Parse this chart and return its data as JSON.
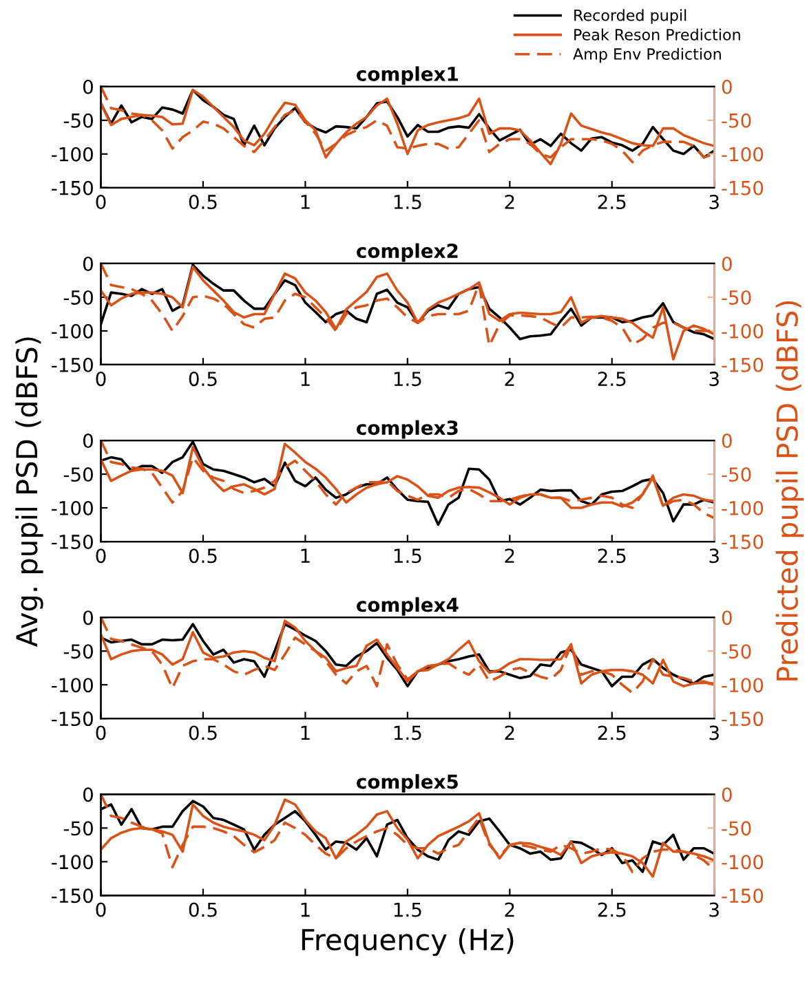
{
  "chart_data": [
    {
      "type": "line",
      "title": "complex1",
      "legend": "top right",
      "grid": false,
      "marker": "none",
      "x": [
        0,
        0.05,
        0.1,
        0.15,
        0.2,
        0.25,
        0.3,
        0.35,
        0.4,
        0.45,
        0.5,
        0.55,
        0.6,
        0.65,
        0.7,
        0.75,
        0.8,
        0.85,
        0.9,
        0.95,
        1,
        1.05,
        1.1,
        1.15,
        1.2,
        1.25,
        1.3,
        1.35,
        1.4,
        1.45,
        1.5,
        1.55,
        1.6,
        1.65,
        1.7,
        1.75,
        1.8,
        1.85,
        1.9,
        1.95,
        2,
        2.05,
        2.1,
        2.15,
        2.2,
        2.25,
        2.3,
        2.35,
        2.4,
        2.45,
        2.5,
        2.55,
        2.6,
        2.65,
        2.7,
        2.75,
        2.8,
        2.85,
        2.9,
        2.95,
        3
      ],
      "xlim": [
        0,
        3
      ],
      "xticks": [
        0,
        0.5,
        1,
        1.5,
        2,
        2.5,
        3
      ],
      "ylim": [
        -150,
        0
      ],
      "yticks": [
        -150,
        -100,
        -50,
        0
      ],
      "y2lim": [
        -150,
        0
      ],
      "y2ticks": [
        -150,
        -100,
        -50,
        0
      ],
      "series": [
        {
          "name": "Recorded pupil",
          "color": "#000000",
          "line_style": "solid",
          "values": [
            -25,
            -55,
            -28,
            -53,
            -45,
            -48,
            -31,
            -34,
            -40,
            -5,
            -20,
            -30,
            -42,
            -48,
            -87,
            -58,
            -87,
            -62,
            -45,
            -32,
            -53,
            -62,
            -68,
            -59,
            -60,
            -62,
            -45,
            -25,
            -22,
            -45,
            -74,
            -57,
            -67,
            -67,
            -61,
            -59,
            -61,
            -41,
            -62,
            -80,
            -72,
            -64,
            -86,
            -78,
            -88,
            -70,
            -84,
            -95,
            -77,
            -75,
            -83,
            -87,
            -95,
            -85,
            -60,
            -78,
            -95,
            -100,
            -88,
            -105,
            -95
          ]
        },
        {
          "name": "Peak Reson Prediction",
          "color": "#d95319",
          "line_style": "solid",
          "axis": "y2",
          "values": [
            -25,
            -57,
            -48,
            -45,
            -42,
            -43,
            -45,
            -56,
            -55,
            -5,
            -15,
            -30,
            -45,
            -60,
            -80,
            -87,
            -70,
            -45,
            -24,
            -27,
            -50,
            -65,
            -105,
            -85,
            -68,
            -55,
            -45,
            -28,
            -18,
            -55,
            -100,
            -65,
            -57,
            -53,
            -50,
            -47,
            -42,
            -18,
            -70,
            -62,
            -62,
            -65,
            -80,
            -98,
            -115,
            -85,
            -40,
            -58,
            -63,
            -68,
            -72,
            -78,
            -84,
            -87,
            -88,
            -62,
            -62,
            -72,
            -78,
            -84,
            -88
          ]
        },
        {
          "name": "Amp Env Prediction",
          "color": "#d95319",
          "line_style": "dashed",
          "axis": "y2",
          "values": [
            0,
            -32,
            -35,
            -40,
            -42,
            -50,
            -65,
            -92,
            -75,
            -65,
            -52,
            -55,
            -62,
            -75,
            -88,
            -97,
            -80,
            -60,
            -42,
            -35,
            -52,
            -70,
            -95,
            -85,
            -72,
            -65,
            -60,
            -50,
            -58,
            -90,
            -92,
            -88,
            -85,
            -85,
            -92,
            -90,
            -70,
            -50,
            -97,
            -85,
            -78,
            -78,
            -85,
            -100,
            -105,
            -90,
            -78,
            -78,
            -78,
            -80,
            -85,
            -95,
            -112,
            -95,
            -87,
            -82,
            -82,
            -82,
            -88,
            -105,
            -100
          ]
        }
      ]
    },
    {
      "type": "line",
      "title": "complex2",
      "grid": false,
      "marker": "none",
      "x": [
        0,
        0.05,
        0.1,
        0.15,
        0.2,
        0.25,
        0.3,
        0.35,
        0.4,
        0.45,
        0.5,
        0.55,
        0.6,
        0.65,
        0.7,
        0.75,
        0.8,
        0.85,
        0.9,
        0.95,
        1,
        1.05,
        1.1,
        1.15,
        1.2,
        1.25,
        1.3,
        1.35,
        1.4,
        1.45,
        1.5,
        1.55,
        1.6,
        1.65,
        1.7,
        1.75,
        1.8,
        1.85,
        1.9,
        1.95,
        2,
        2.05,
        2.1,
        2.15,
        2.2,
        2.25,
        2.3,
        2.35,
        2.4,
        2.45,
        2.5,
        2.55,
        2.6,
        2.65,
        2.7,
        2.75,
        2.8,
        2.85,
        2.9,
        2.95,
        3
      ],
      "xlim": [
        0,
        3
      ],
      "xticks": [
        0,
        0.5,
        1,
        1.5,
        2,
        2.5,
        3
      ],
      "ylim": [
        -150,
        0
      ],
      "yticks": [
        -150,
        -100,
        -50,
        0
      ],
      "y2lim": [
        -150,
        0
      ],
      "y2ticks": [
        -150,
        -100,
        -50,
        0
      ],
      "series": [
        {
          "color": "#000000",
          "line_style": "solid",
          "values": [
            -90,
            -43,
            -45,
            -48,
            -38,
            -45,
            -38,
            -70,
            -62,
            -2,
            -18,
            -30,
            -40,
            -40,
            -55,
            -67,
            -67,
            -45,
            -25,
            -32,
            -58,
            -72,
            -87,
            -75,
            -70,
            -82,
            -87,
            -45,
            -39,
            -58,
            -65,
            -88,
            -70,
            -62,
            -67,
            -45,
            -38,
            -35,
            -67,
            -80,
            -95,
            -112,
            -108,
            -107,
            -105,
            -85,
            -67,
            -92,
            -80,
            -80,
            -80,
            -87,
            -85,
            -80,
            -77,
            -59,
            -87,
            -95,
            -102,
            -105,
            -112
          ]
        },
        {
          "color": "#d95319",
          "line_style": "solid",
          "axis": "y2",
          "values": [
            -40,
            -62,
            -52,
            -45,
            -43,
            -43,
            -45,
            -50,
            -65,
            -5,
            -25,
            -40,
            -55,
            -72,
            -80,
            -75,
            -75,
            -45,
            -15,
            -22,
            -43,
            -55,
            -72,
            -97,
            -68,
            -55,
            -42,
            -20,
            -15,
            -40,
            -58,
            -88,
            -68,
            -58,
            -52,
            -45,
            -38,
            -28,
            -75,
            -85,
            -75,
            -73,
            -74,
            -75,
            -75,
            -72,
            -50,
            -88,
            -80,
            -78,
            -80,
            -82,
            -88,
            -100,
            -110,
            -65,
            -142,
            -100,
            -92,
            -97,
            -105
          ]
        },
        {
          "color": "#d95319",
          "line_style": "dashed",
          "axis": "y2",
          "values": [
            0,
            -32,
            -35,
            -38,
            -45,
            -55,
            -75,
            -100,
            -78,
            -50,
            -48,
            -52,
            -60,
            -75,
            -90,
            -95,
            -82,
            -80,
            -55,
            -45,
            -50,
            -65,
            -80,
            -100,
            -75,
            -65,
            -62,
            -55,
            -52,
            -65,
            -80,
            -88,
            -78,
            -75,
            -75,
            -75,
            -70,
            -30,
            -122,
            -90,
            -77,
            -77,
            -78,
            -80,
            -88,
            -95,
            -80,
            -80,
            -79,
            -80,
            -85,
            -95,
            -120,
            -112,
            -95,
            -88,
            -88,
            -95,
            -100,
            -100,
            -100
          ]
        }
      ]
    },
    {
      "type": "line",
      "title": "complex3",
      "ylabel": "Avg. pupil PSD (dBFS)",
      "y2label": "Predicted pupil PSD (dBFS)",
      "grid": false,
      "marker": "none",
      "x": [
        0,
        0.05,
        0.1,
        0.15,
        0.2,
        0.25,
        0.3,
        0.35,
        0.4,
        0.45,
        0.5,
        0.55,
        0.6,
        0.65,
        0.7,
        0.75,
        0.8,
        0.85,
        0.9,
        0.95,
        1,
        1.05,
        1.1,
        1.15,
        1.2,
        1.25,
        1.3,
        1.35,
        1.4,
        1.45,
        1.5,
        1.55,
        1.6,
        1.65,
        1.7,
        1.75,
        1.8,
        1.85,
        1.9,
        1.95,
        2,
        2.05,
        2.1,
        2.15,
        2.2,
        2.25,
        2.3,
        2.35,
        2.4,
        2.45,
        2.5,
        2.55,
        2.6,
        2.65,
        2.7,
        2.75,
        2.8,
        2.85,
        2.9,
        2.95,
        3
      ],
      "xlim": [
        0,
        3
      ],
      "xticks": [
        0,
        0.5,
        1,
        1.5,
        2,
        2.5,
        3
      ],
      "ylim": [
        -150,
        0
      ],
      "yticks": [
        -150,
        -100,
        -50,
        0
      ],
      "y2lim": [
        -150,
        0
      ],
      "y2ticks": [
        -150,
        -100,
        -50,
        0
      ],
      "series": [
        {
          "color": "#000000",
          "line_style": "solid",
          "values": [
            -30,
            -25,
            -28,
            -45,
            -38,
            -38,
            -48,
            -32,
            -25,
            -2,
            -35,
            -43,
            -45,
            -50,
            -55,
            -62,
            -57,
            -68,
            -33,
            -60,
            -68,
            -55,
            -73,
            -85,
            -80,
            -70,
            -65,
            -65,
            -55,
            -73,
            -88,
            -90,
            -91,
            -125,
            -95,
            -85,
            -42,
            -43,
            -58,
            -90,
            -87,
            -95,
            -85,
            -73,
            -75,
            -74,
            -74,
            -90,
            -95,
            -80,
            -76,
            -75,
            -68,
            -60,
            -57,
            -78,
            -120,
            -95,
            -95,
            -88,
            -92
          ]
        },
        {
          "color": "#d95319",
          "line_style": "solid",
          "axis": "y2",
          "values": [
            -28,
            -60,
            -52,
            -45,
            -43,
            -43,
            -45,
            -52,
            -78,
            -10,
            -40,
            -60,
            -75,
            -68,
            -65,
            -72,
            -80,
            -72,
            -5,
            -18,
            -32,
            -42,
            -55,
            -72,
            -92,
            -80,
            -70,
            -65,
            -62,
            -53,
            -58,
            -68,
            -82,
            -85,
            -75,
            -70,
            -69,
            -70,
            -77,
            -85,
            -95,
            -85,
            -80,
            -80,
            -85,
            -85,
            -100,
            -100,
            -95,
            -92,
            -92,
            -98,
            -92,
            -80,
            -55,
            -97,
            -85,
            -80,
            -82,
            -88,
            -90
          ]
        },
        {
          "color": "#d95319",
          "line_style": "dashed",
          "axis": "y2",
          "values": [
            0,
            -32,
            -35,
            -40,
            -42,
            -48,
            -70,
            -92,
            -75,
            -25,
            -45,
            -55,
            -60,
            -72,
            -78,
            -75,
            -70,
            -60,
            -40,
            -30,
            -45,
            -60,
            -80,
            -95,
            -78,
            -70,
            -62,
            -62,
            -60,
            -75,
            -82,
            -88,
            -80,
            -80,
            -85,
            -75,
            -72,
            -80,
            -90,
            -90,
            -88,
            -83,
            -80,
            -80,
            -85,
            -85,
            -90,
            -88,
            -85,
            -82,
            -85,
            -95,
            -100,
            -80,
            -52,
            -98,
            -90,
            -88,
            -95,
            -108,
            -115
          ]
        }
      ]
    },
    {
      "type": "line",
      "title": "complex4",
      "grid": false,
      "marker": "none",
      "x": [
        0,
        0.05,
        0.1,
        0.15,
        0.2,
        0.25,
        0.3,
        0.35,
        0.4,
        0.45,
        0.5,
        0.55,
        0.6,
        0.65,
        0.7,
        0.75,
        0.8,
        0.85,
        0.9,
        0.95,
        1,
        1.05,
        1.1,
        1.15,
        1.2,
        1.25,
        1.3,
        1.35,
        1.4,
        1.45,
        1.5,
        1.55,
        1.6,
        1.65,
        1.7,
        1.75,
        1.8,
        1.85,
        1.9,
        1.95,
        2,
        2.05,
        2.1,
        2.15,
        2.2,
        2.25,
        2.3,
        2.35,
        2.4,
        2.45,
        2.5,
        2.55,
        2.6,
        2.65,
        2.7,
        2.75,
        2.8,
        2.85,
        2.9,
        2.95,
        3
      ],
      "xlim": [
        0,
        3
      ],
      "xticks": [
        0,
        0.5,
        1,
        1.5,
        2,
        2.5,
        3
      ],
      "ylim": [
        -150,
        0
      ],
      "yticks": [
        -150,
        -100,
        -50,
        0
      ],
      "y2lim": [
        -150,
        0
      ],
      "y2ticks": [
        -150,
        -100,
        -50,
        0
      ],
      "series": [
        {
          "color": "#000000",
          "line_style": "solid",
          "values": [
            -30,
            -37,
            -35,
            -33,
            -40,
            -40,
            -33,
            -34,
            -33,
            -10,
            -35,
            -55,
            -48,
            -67,
            -62,
            -65,
            -88,
            -50,
            -10,
            -18,
            -27,
            -35,
            -50,
            -70,
            -72,
            -58,
            -50,
            -38,
            -60,
            -78,
            -102,
            -80,
            -75,
            -70,
            -65,
            -62,
            -58,
            -55,
            -80,
            -80,
            -85,
            -90,
            -87,
            -70,
            -72,
            -52,
            -48,
            -70,
            -75,
            -80,
            -102,
            -88,
            -88,
            -70,
            -62,
            -75,
            -85,
            -92,
            -98,
            -88,
            -85
          ]
        },
        {
          "color": "#d95319",
          "line_style": "solid",
          "axis": "y2",
          "values": [
            -25,
            -62,
            -55,
            -50,
            -48,
            -48,
            -55,
            -70,
            -62,
            -22,
            -52,
            -60,
            -58,
            -52,
            -50,
            -52,
            -60,
            -65,
            -5,
            -15,
            -35,
            -50,
            -60,
            -80,
            -75,
            -72,
            -42,
            -33,
            -55,
            -75,
            -95,
            -80,
            -72,
            -70,
            -62,
            -48,
            -35,
            -65,
            -82,
            -78,
            -68,
            -62,
            -62,
            -63,
            -63,
            -62,
            -40,
            -98,
            -85,
            -80,
            -78,
            -78,
            -80,
            -85,
            -98,
            -63,
            -95,
            -102,
            -98,
            -97,
            -98
          ]
        },
        {
          "color": "#d95319",
          "line_style": "dashed",
          "axis": "y2",
          "values": [
            0,
            -32,
            -35,
            -40,
            -45,
            -50,
            -70,
            -105,
            -72,
            -65,
            -62,
            -62,
            -70,
            -80,
            -85,
            -78,
            -72,
            -78,
            -55,
            -30,
            -40,
            -50,
            -65,
            -85,
            -98,
            -80,
            -72,
            -102,
            -40,
            -70,
            -92,
            -80,
            -78,
            -70,
            -68,
            -78,
            -85,
            -70,
            -95,
            -88,
            -78,
            -75,
            -82,
            -88,
            -92,
            -78,
            -40,
            -85,
            -80,
            -80,
            -85,
            -100,
            -112,
            -95,
            -62,
            -85,
            -88,
            -90,
            -95,
            -95,
            -100
          ]
        }
      ]
    },
    {
      "type": "line",
      "title": "complex5",
      "xlabel": "Frequency (Hz)",
      "grid": false,
      "marker": "none",
      "x": [
        0,
        0.05,
        0.1,
        0.15,
        0.2,
        0.25,
        0.3,
        0.35,
        0.4,
        0.45,
        0.5,
        0.55,
        0.6,
        0.65,
        0.7,
        0.75,
        0.8,
        0.85,
        0.9,
        0.95,
        1,
        1.05,
        1.1,
        1.15,
        1.2,
        1.25,
        1.3,
        1.35,
        1.4,
        1.45,
        1.5,
        1.55,
        1.6,
        1.65,
        1.7,
        1.75,
        1.8,
        1.85,
        1.9,
        1.95,
        2,
        2.05,
        2.1,
        2.15,
        2.2,
        2.25,
        2.3,
        2.35,
        2.4,
        2.45,
        2.5,
        2.55,
        2.6,
        2.65,
        2.7,
        2.75,
        2.8,
        2.85,
        2.9,
        2.95,
        3
      ],
      "xlim": [
        0,
        3
      ],
      "xticks": [
        0,
        0.5,
        1,
        1.5,
        2,
        2.5,
        3
      ],
      "ylim": [
        -150,
        0
      ],
      "yticks": [
        -150,
        -100,
        -50,
        0
      ],
      "y2lim": [
        -150,
        0
      ],
      "y2ticks": [
        -150,
        -100,
        -50,
        0
      ],
      "series": [
        {
          "color": "#000000",
          "line_style": "solid",
          "values": [
            -22,
            -15,
            -45,
            -22,
            -50,
            -52,
            -48,
            -48,
            -25,
            -10,
            -18,
            -35,
            -38,
            -45,
            -52,
            -82,
            -60,
            -45,
            -35,
            -25,
            -40,
            -60,
            -82,
            -70,
            -72,
            -82,
            -65,
            -92,
            -45,
            -38,
            -65,
            -82,
            -92,
            -97,
            -68,
            -55,
            -60,
            -40,
            -36,
            -55,
            -75,
            -80,
            -88,
            -85,
            -97,
            -95,
            -70,
            -72,
            -80,
            -90,
            -80,
            -102,
            -98,
            -115,
            -70,
            -75,
            -60,
            -97,
            -80,
            -80,
            -88
          ]
        },
        {
          "color": "#d95319",
          "line_style": "solid",
          "axis": "y2",
          "values": [
            -82,
            -65,
            -57,
            -52,
            -50,
            -52,
            -55,
            -60,
            -85,
            -15,
            -32,
            -42,
            -48,
            -52,
            -55,
            -60,
            -68,
            -45,
            -8,
            -15,
            -38,
            -55,
            -65,
            -95,
            -70,
            -60,
            -48,
            -30,
            -25,
            -50,
            -67,
            -95,
            -75,
            -62,
            -55,
            -48,
            -40,
            -28,
            -72,
            -95,
            -75,
            -72,
            -73,
            -78,
            -82,
            -90,
            -70,
            -102,
            -92,
            -88,
            -86,
            -88,
            -92,
            -102,
            -122,
            -72,
            -85,
            -85,
            -88,
            -92,
            -98
          ]
        },
        {
          "color": "#d95319",
          "line_style": "dashed",
          "axis": "y2",
          "values": [
            0,
            -32,
            -35,
            -42,
            -48,
            -52,
            -58,
            -108,
            -75,
            -48,
            -48,
            -50,
            -55,
            -62,
            -75,
            -86,
            -78,
            -68,
            -42,
            -50,
            -60,
            -75,
            -88,
            -95,
            -80,
            -70,
            -62,
            -55,
            -50,
            -60,
            -75,
            -80,
            -80,
            -88,
            -80,
            -75,
            -55,
            -35,
            -75,
            -92,
            -75,
            -75,
            -78,
            -82,
            -85,
            -75,
            -80,
            -88,
            -85,
            -80,
            -82,
            -90,
            -115,
            -95,
            -85,
            -82,
            -82,
            -85,
            -90,
            -98,
            -112
          ]
        }
      ]
    }
  ]
}
